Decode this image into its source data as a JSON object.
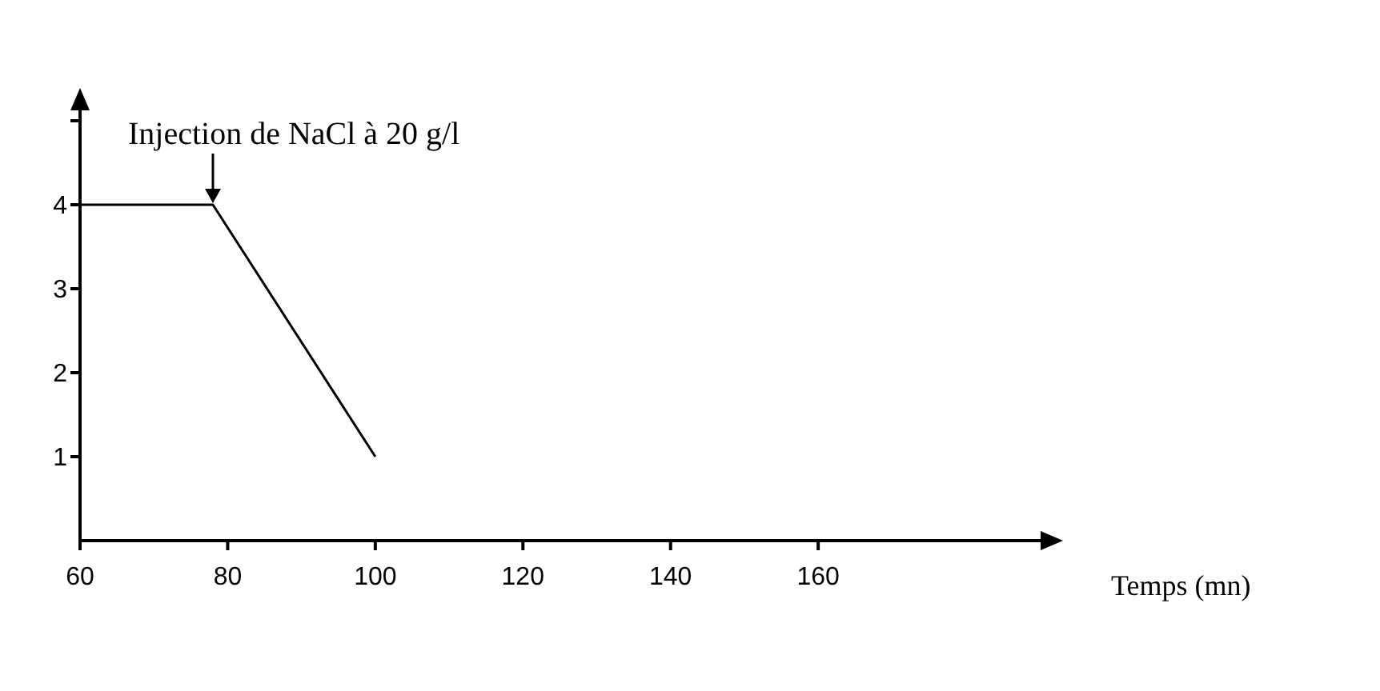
{
  "chart_data": {
    "type": "line",
    "xlabel": "Temps (mn)",
    "x": [
      60,
      78,
      100
    ],
    "series": [
      {
        "color": "#000000",
        "values": [
          4,
          4,
          1
        ]
      }
    ],
    "xlim": [
      60,
      191
    ],
    "xticks": [
      60,
      80,
      100,
      120,
      140,
      160
    ],
    "ylim": [
      0,
      5.2
    ],
    "yticks": [
      1,
      2,
      3,
      4,
      {
        "value": 5,
        "label": null
      }
    ],
    "annotations": [
      {
        "text": "Injection de NaCl à 20 g/l",
        "x": 78,
        "y": 4
      }
    ],
    "grid": false,
    "legend": false,
    "marker": "none",
    "line_style": "solid"
  }
}
